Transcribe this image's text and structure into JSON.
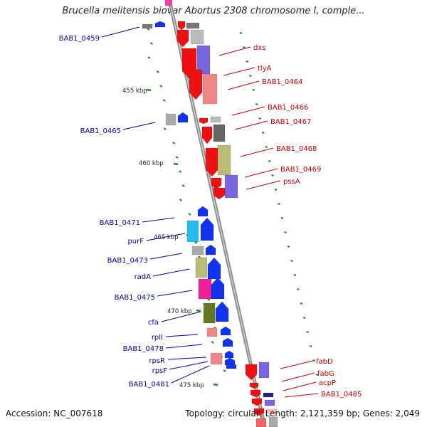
{
  "title": "Brucella melitensis biovar Abortus 2308 chromosome I, comple...",
  "footer": {
    "accession_label": "Accession:",
    "accession": "NC_007618",
    "topology_label": "Topology:",
    "topology": "circular",
    "length_label": "Length:",
    "length": "2,121,359 bp",
    "genes_label": "Genes:",
    "genes": "2,049"
  },
  "ruler_labels": [
    "455 kbp",
    "460 kbp",
    "465 kbp",
    "470 kbp",
    "475 kbp"
  ],
  "colors": {
    "forward_label": "#cc0000",
    "reverse_label": "#0000aa",
    "forward_arrow": "#ee1111",
    "reverse_arrow": "#1133ee",
    "backbone": "#999999",
    "tick": "#228b22"
  },
  "genes": [
    {
      "name": "BAB1_0459",
      "strand": "reverse"
    },
    {
      "name": "dxs",
      "strand": "forward"
    },
    {
      "name": "tlyA",
      "strand": "forward"
    },
    {
      "name": "BAB1_0464",
      "strand": "forward"
    },
    {
      "name": "BAB1_0466",
      "strand": "forward"
    },
    {
      "name": "BAB1_0465",
      "strand": "reverse"
    },
    {
      "name": "BAB1_0467",
      "strand": "forward"
    },
    {
      "name": "BAB1_0468",
      "strand": "forward"
    },
    {
      "name": "BAB1_0469",
      "strand": "forward"
    },
    {
      "name": "pssA",
      "strand": "forward"
    },
    {
      "name": "BAB1_0471",
      "strand": "reverse"
    },
    {
      "name": "purF",
      "strand": "reverse"
    },
    {
      "name": "BAB1_0473",
      "strand": "reverse"
    },
    {
      "name": "radA",
      "strand": "reverse"
    },
    {
      "name": "BAB1_0475",
      "strand": "reverse"
    },
    {
      "name": "cfa",
      "strand": "reverse"
    },
    {
      "name": "rplI",
      "strand": "reverse"
    },
    {
      "name": "BAB1_0478",
      "strand": "reverse"
    },
    {
      "name": "rpsR",
      "strand": "reverse"
    },
    {
      "name": "rpsF",
      "strand": "reverse"
    },
    {
      "name": "BAB1_0481",
      "strand": "reverse"
    },
    {
      "name": "fabD",
      "strand": "forward"
    },
    {
      "name": "fabG",
      "strand": "forward"
    },
    {
      "name": "acpP",
      "strand": "forward"
    },
    {
      "name": "BAB1_0485",
      "strand": "forward"
    }
  ]
}
